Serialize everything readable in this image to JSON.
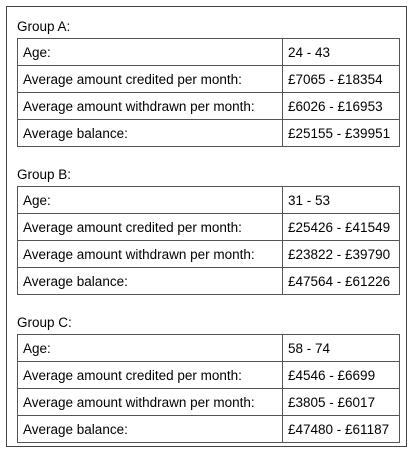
{
  "groups": [
    {
      "title": "Group A:",
      "rows": [
        [
          "Age:",
          "24 - 43"
        ],
        [
          "Average amount credited per month:",
          "£7065 - £18354"
        ],
        [
          "Average amount withdrawn per month:",
          "£6026 - £16953"
        ],
        [
          "Average balance:",
          "£25155 - £39951"
        ]
      ]
    },
    {
      "title": "Group B:",
      "rows": [
        [
          "Age:",
          "31 - 53"
        ],
        [
          "Average amount credited per month:",
          "£25426 - £41549"
        ],
        [
          "Average amount withdrawn per month:",
          "£23822 - £39790"
        ],
        [
          "Average balance:",
          "£47564 - £61226"
        ]
      ]
    },
    {
      "title": "Group C:",
      "rows": [
        [
          "Age:",
          "58 - 74"
        ],
        [
          "Average amount credited per month:",
          "£4546 - £6699"
        ],
        [
          "Average amount withdrawn per month:",
          "£3805 - £6017"
        ],
        [
          "Average balance:",
          "£47480 - £61187"
        ]
      ]
    }
  ]
}
